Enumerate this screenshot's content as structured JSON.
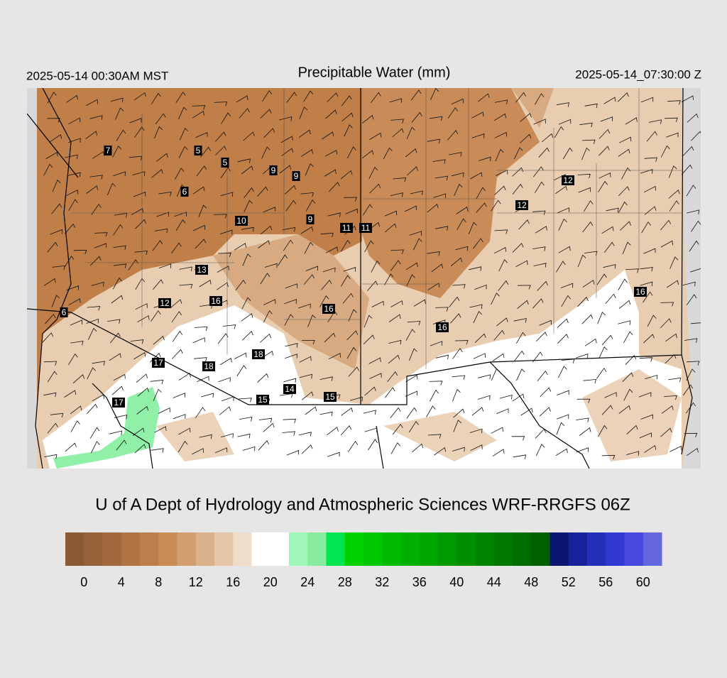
{
  "header": {
    "left": "2025-05-14 00:30AM MST",
    "title": "Precipitable Water (mm)",
    "right": "2025-05-14_07:30:00 Z"
  },
  "map": {
    "stations": [
      7,
      5,
      5,
      9,
      9,
      6,
      12,
      12,
      10,
      9,
      11,
      11,
      13,
      16,
      12,
      16,
      16,
      6,
      16,
      18,
      17,
      18,
      14,
      15,
      15,
      17
    ]
  },
  "credit": "U of A Dept of Hydrology and Atmospheric Sciences WRF-RRGFS 06Z",
  "colorbar": {
    "range": [
      -2,
      62
    ],
    "colors": [
      "#8a5a32",
      "#96623a",
      "#a2693e",
      "#b07444",
      "#bc7e4a",
      "#c98c54",
      "#d29e6e",
      "#dbb18a",
      "#e6c6a8",
      "#f0dccb",
      "#ffffff",
      "#ffffff",
      "#a0f5b8",
      "#88ec9e",
      "#00e650",
      "#00d200",
      "#00c800",
      "#00bb00",
      "#00b000",
      "#00a500",
      "#009a00",
      "#008f00",
      "#008400",
      "#007800",
      "#006d00",
      "#006000",
      "#0a1570",
      "#18229a",
      "#2530b8",
      "#3238d2",
      "#4648de",
      "#6466e0"
    ],
    "ticks": [
      0,
      4,
      8,
      12,
      16,
      20,
      24,
      28,
      32,
      36,
      40,
      44,
      48,
      52,
      56,
      60
    ]
  }
}
